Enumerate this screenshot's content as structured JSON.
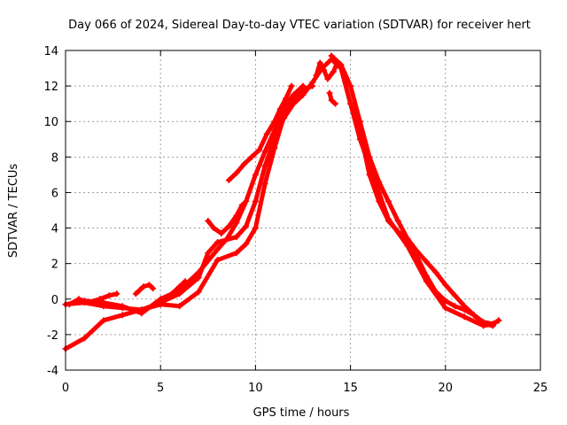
{
  "chart_data": {
    "type": "scatter",
    "title": "Day 066 of 2024, Sidereal Day-to-day VTEC variation (SDTVAR) for receiver hert",
    "xlabel": "GPS time / hours",
    "ylabel": "SDTVAR / TECUs",
    "xlim": [
      0,
      25
    ],
    "ylim": [
      -4,
      14
    ],
    "xticks": [
      0,
      5,
      10,
      15,
      20,
      25
    ],
    "yticks": [
      -4,
      -2,
      0,
      2,
      4,
      6,
      8,
      10,
      12,
      14
    ],
    "grid": true,
    "legend": "none",
    "marker": "+",
    "color": "#ff0000",
    "series": [
      {
        "name": "track-1",
        "x": [
          0,
          1,
          2,
          3,
          4,
          5,
          6,
          7,
          7.5,
          8,
          9,
          9.5,
          10,
          10.5,
          11,
          11.5,
          12,
          12.5,
          13,
          13.5,
          14,
          14.5,
          15,
          15.5,
          16,
          16.5,
          17,
          18,
          19,
          20,
          21,
          22,
          22.5,
          22.8
        ],
        "y": [
          -2.8,
          -2.2,
          -1.2,
          -0.9,
          -0.6,
          -0.2,
          0.3,
          1.2,
          2.6,
          3.2,
          3.5,
          4.1,
          5.5,
          7.5,
          9.0,
          10.2,
          11.0,
          11.5,
          12.2,
          13.0,
          13.5,
          13.0,
          11.0,
          9.0,
          7.5,
          6.0,
          4.5,
          3.0,
          1.0,
          -0.5,
          -1.0,
          -1.5,
          -1.4,
          -1.2
        ]
      },
      {
        "name": "track-2",
        "x": [
          0,
          1,
          2,
          3,
          4,
          5,
          6,
          7,
          8,
          9,
          9.5,
          10,
          10.5,
          11,
          11.5,
          12,
          12.5,
          13
        ],
        "y": [
          -0.3,
          -0.2,
          -0.4,
          -0.5,
          -0.6,
          -0.3,
          -0.4,
          0.4,
          2.2,
          2.6,
          3.1,
          4.0,
          6.5,
          8.5,
          10.3,
          11.3,
          11.8,
          12.0
        ]
      },
      {
        "name": "track-3",
        "x": [
          1,
          2,
          3,
          4,
          5,
          6,
          7,
          8,
          8.5,
          9,
          9.5,
          10,
          10.5,
          11,
          11.5,
          12,
          12.5
        ],
        "y": [
          -0.1,
          -0.2,
          -0.4,
          -0.8,
          0.0,
          0.5,
          1.5,
          2.8,
          3.4,
          4.3,
          5.5,
          7.0,
          8.3,
          9.5,
          10.8,
          11.5,
          12.0
        ]
      },
      {
        "name": "track-4",
        "x": [
          14,
          14.5,
          15,
          15.5,
          16,
          16.5,
          17,
          17.5,
          18,
          18.5,
          19,
          19.5,
          20,
          20.5,
          21,
          21.5,
          22,
          22.5,
          22.8
        ],
        "y": [
          13.7,
          13.2,
          12.0,
          10.0,
          8.0,
          6.6,
          5.5,
          4.4,
          3.4,
          2.7,
          2.1,
          1.5,
          0.8,
          0.2,
          -0.4,
          -0.9,
          -1.3,
          -1.4,
          -1.2
        ]
      },
      {
        "name": "track-5",
        "x": [
          15,
          15.5,
          16,
          16.5,
          17,
          17.5,
          18,
          18.5,
          19,
          19.5,
          20,
          20.5,
          21,
          21.5,
          22,
          22.5
        ],
        "y": [
          11.0,
          9.5,
          7.0,
          5.5,
          4.4,
          3.8,
          3.2,
          2.4,
          1.3,
          0.4,
          -0.1,
          -0.4,
          -0.6,
          -0.9,
          -1.4,
          -1.5
        ]
      },
      {
        "name": "segment-a",
        "x": [
          8.6,
          9.0,
          9.4,
          9.8,
          10.2,
          10.6,
          11.0,
          11.3,
          11.6,
          11.9
        ],
        "y": [
          6.7,
          7.1,
          7.6,
          8.0,
          8.4,
          9.3,
          10.0,
          10.7,
          11.3,
          12.0
        ]
      },
      {
        "name": "segment-b",
        "x": [
          5.2,
          5.6,
          6.0,
          6.3
        ],
        "y": [
          0.0,
          0.3,
          0.7,
          1.0
        ]
      },
      {
        "name": "segment-c",
        "x": [
          3.7,
          3.9,
          4.1,
          4.4,
          4.6
        ],
        "y": [
          0.3,
          0.5,
          0.7,
          0.8,
          0.6
        ]
      },
      {
        "name": "segment-d",
        "x": [
          0.2,
          0.7,
          1.2,
          1.8,
          2.3,
          2.7
        ],
        "y": [
          -0.3,
          0.0,
          -0.2,
          0.0,
          0.2,
          0.3
        ]
      },
      {
        "name": "segment-e",
        "x": [
          7.5,
          7.8,
          8.2,
          8.6,
          9.0,
          9.3
        ],
        "y": [
          4.4,
          4.0,
          3.7,
          4.1,
          4.7,
          5.3
        ]
      },
      {
        "name": "segment-f",
        "x": [
          13.2,
          13.4,
          13.6,
          13.8,
          14.1,
          14.3
        ],
        "y": [
          12.6,
          13.3,
          12.9,
          12.4,
          12.8,
          13.3
        ]
      },
      {
        "name": "segment-g",
        "x": [
          13.9,
          14.0,
          14.2
        ],
        "y": [
          11.6,
          11.2,
          11.0
        ]
      }
    ]
  }
}
